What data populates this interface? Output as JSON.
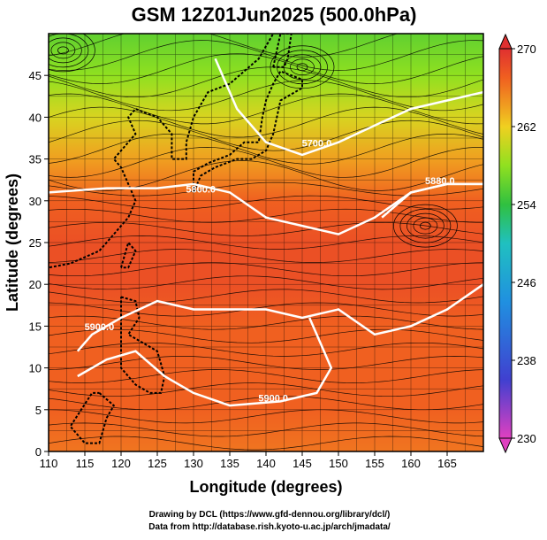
{
  "chart_data": {
    "type": "heatmap",
    "title": "GSM 12Z01Jun2025 (500.0hPa)",
    "xlabel": "Longitude (degrees)",
    "ylabel": "Latitude  (degrees)",
    "xlim": [
      110,
      170
    ],
    "ylim": [
      0,
      50
    ],
    "xticks": [
      110,
      115,
      120,
      125,
      130,
      135,
      140,
      145,
      150,
      155,
      160,
      165
    ],
    "yticks": [
      0,
      5,
      10,
      15,
      20,
      25,
      30,
      35,
      40,
      45
    ],
    "grid": true,
    "colorbar": {
      "min": 230,
      "max": 270,
      "ticks": [
        230,
        238,
        246,
        254,
        262,
        270
      ],
      "stops": [
        {
          "v": 230,
          "color": "#e040c0"
        },
        {
          "v": 236,
          "color": "#4040d0"
        },
        {
          "v": 244,
          "color": "#2090e0"
        },
        {
          "v": 250,
          "color": "#20c0c0"
        },
        {
          "v": 254,
          "color": "#30c040"
        },
        {
          "v": 258,
          "color": "#90e020"
        },
        {
          "v": 262,
          "color": "#f0d020"
        },
        {
          "v": 264,
          "color": "#f0a020"
        },
        {
          "v": 267,
          "color": "#f06020"
        },
        {
          "v": 270,
          "color": "#e03030"
        }
      ]
    },
    "temperature_bands": [
      {
        "lat": 50,
        "value": 256
      },
      {
        "lat": 45,
        "value": 258
      },
      {
        "lat": 40,
        "value": 261
      },
      {
        "lat": 35,
        "value": 264
      },
      {
        "lat": 30,
        "value": 267
      },
      {
        "lat": 25,
        "value": 268
      },
      {
        "lat": 20,
        "value": 268
      },
      {
        "lat": 15,
        "value": 267
      },
      {
        "lat": 10,
        "value": 267
      },
      {
        "lat": 5,
        "value": 267
      },
      {
        "lat": 0,
        "value": 266
      }
    ],
    "contours": [
      {
        "label": "5700.0",
        "label_at": [
          147,
          36.5
        ],
        "points": [
          [
            133,
            47
          ],
          [
            136,
            41
          ],
          [
            140,
            37
          ],
          [
            145,
            35.5
          ],
          [
            150,
            37
          ],
          [
            155,
            39
          ],
          [
            160,
            41
          ],
          [
            165,
            42
          ],
          [
            170,
            43
          ]
        ]
      },
      {
        "label": "5800.0",
        "label_at": [
          131,
          31
        ],
        "points": [
          [
            110,
            31
          ],
          [
            118,
            31.5
          ],
          [
            125,
            31.5
          ],
          [
            130,
            32
          ],
          [
            135,
            31
          ],
          [
            140,
            28
          ],
          [
            145,
            27
          ],
          [
            150,
            26
          ],
          [
            155,
            28
          ],
          [
            160,
            31
          ],
          [
            165,
            32
          ],
          [
            170,
            32
          ]
        ]
      },
      {
        "label": "5880.0",
        "label_at": [
          164,
          32
        ],
        "points": [
          [
            156,
            28
          ],
          [
            160,
            31
          ],
          [
            165,
            32
          ],
          [
            170,
            32
          ]
        ]
      },
      {
        "label": "5900.0",
        "label_at": [
          117,
          14.5
        ],
        "points": [
          [
            114,
            12
          ],
          [
            116,
            14
          ],
          [
            120,
            16
          ],
          [
            125,
            18
          ],
          [
            130,
            17
          ],
          [
            140,
            17
          ],
          [
            145,
            16
          ],
          [
            150,
            17
          ],
          [
            155,
            14
          ],
          [
            160,
            15
          ],
          [
            165,
            17
          ],
          [
            170,
            20
          ]
        ]
      },
      {
        "label": "5900.0",
        "label_at": [
          141,
          6
        ],
        "points": [
          [
            114,
            9
          ],
          [
            118,
            11
          ],
          [
            122,
            12
          ],
          [
            126,
            9
          ],
          [
            130,
            7
          ],
          [
            135,
            5.5
          ],
          [
            142,
            6
          ],
          [
            147,
            7
          ],
          [
            149,
            10
          ],
          [
            147,
            14
          ],
          [
            146,
            16
          ]
        ]
      }
    ],
    "highs": [
      {
        "label": "anticyclone",
        "at": [
          162,
          27
        ]
      }
    ],
    "lows": [
      {
        "label": "cyclone",
        "at": [
          112,
          48
        ]
      },
      {
        "label": "cyclone",
        "at": [
          145,
          46
        ]
      }
    ]
  },
  "credits": {
    "line1": "Drawing by DCL (https://www.gfd-dennou.org/library/dcl/)",
    "line2": "Data from http://database.rish.kyoto-u.ac.jp/arch/jmadata/"
  }
}
